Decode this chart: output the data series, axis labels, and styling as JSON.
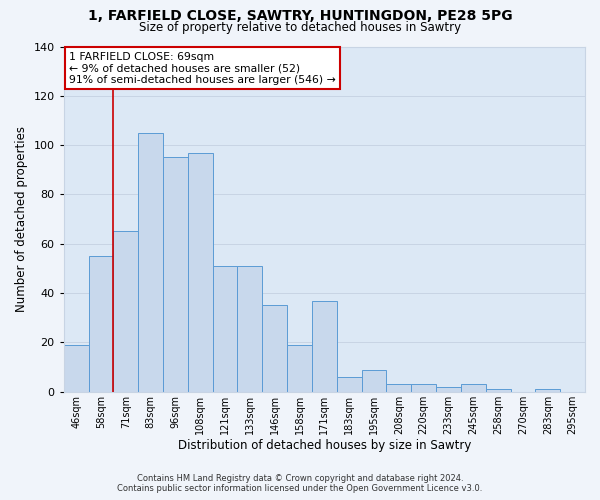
{
  "title1": "1, FARFIELD CLOSE, SAWTRY, HUNTINGDON, PE28 5PG",
  "title2": "Size of property relative to detached houses in Sawtry",
  "xlabel": "Distribution of detached houses by size in Sawtry",
  "ylabel": "Number of detached properties",
  "bar_labels": [
    "46sqm",
    "58sqm",
    "71sqm",
    "83sqm",
    "96sqm",
    "108sqm",
    "121sqm",
    "133sqm",
    "146sqm",
    "158sqm",
    "171sqm",
    "183sqm",
    "195sqm",
    "208sqm",
    "220sqm",
    "233sqm",
    "245sqm",
    "258sqm",
    "270sqm",
    "283sqm",
    "295sqm"
  ],
  "bar_values": [
    19,
    55,
    65,
    105,
    95,
    97,
    51,
    51,
    35,
    19,
    37,
    6,
    9,
    3,
    3,
    2,
    3,
    1,
    0,
    1,
    0
  ],
  "bar_color": "#c8d8ec",
  "bar_edgecolor": "#5b9bd5",
  "bar_linewidth": 0.7,
  "vline_index": 2,
  "vline_color": "#cc0000",
  "vline_linewidth": 1.2,
  "annotation_title": "1 FARFIELD CLOSE: 69sqm",
  "annotation_line1": "← 9% of detached houses are smaller (52)",
  "annotation_line2": "91% of semi-detached houses are larger (546) →",
  "annotation_box_edgecolor": "#cc0000",
  "annotation_box_facecolor": "#ffffff",
  "ylim": [
    0,
    140
  ],
  "yticks": [
    0,
    20,
    40,
    60,
    80,
    100,
    120,
    140
  ],
  "grid_color": "#c8d4e4",
  "plot_bg_color": "#dce8f5",
  "fig_bg_color": "#f0f4fa",
  "footnote1": "Contains HM Land Registry data © Crown copyright and database right 2024.",
  "footnote2": "Contains public sector information licensed under the Open Government Licence v3.0."
}
